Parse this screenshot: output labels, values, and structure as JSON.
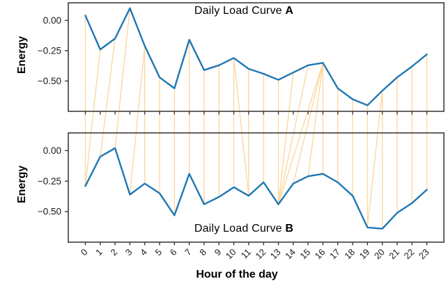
{
  "figure": {
    "xlabel": "Hour of the day",
    "ylabel": "Energy",
    "background": "#ffffff",
    "colors": {
      "curve": "#1f77b4",
      "alignment_line": "#fdd089",
      "axis": "#3c3c3c",
      "tick_text": "#1a1a1a"
    }
  },
  "axes": {
    "xlim": [
      -1.15,
      24.15
    ],
    "ylim": [
      -0.75,
      0.145
    ],
    "x_tick_labels": [
      "0",
      "1",
      "2",
      "3",
      "4",
      "5",
      "6",
      "7",
      "8",
      "9",
      "10",
      "11",
      "12",
      "13",
      "14",
      "15",
      "16",
      "17",
      "18",
      "19",
      "20",
      "21",
      "22",
      "23"
    ],
    "yticks": [
      {
        "value": 0.0,
        "label": "0.00"
      },
      {
        "value": -0.25,
        "label": "−0.25"
      },
      {
        "value": -0.5,
        "label": "−0.50"
      }
    ]
  },
  "chart_data": [
    {
      "type": "line",
      "title_text": "Daily Load Curve ",
      "title_bold": "A",
      "ylabel": "Energy",
      "x": [
        0,
        1,
        2,
        3,
        4,
        5,
        6,
        7,
        8,
        9,
        10,
        11,
        12,
        13,
        14,
        15,
        16,
        17,
        18,
        19,
        20,
        21,
        22,
        23
      ],
      "values": [
        0.04,
        -0.24,
        -0.15,
        0.1,
        -0.21,
        -0.47,
        -0.56,
        -0.16,
        -0.41,
        -0.37,
        -0.31,
        -0.4,
        -0.44,
        -0.49,
        -0.43,
        -0.37,
        -0.35,
        -0.56,
        -0.65,
        -0.7,
        -0.58,
        -0.47,
        -0.38,
        -0.28
      ],
      "ylim": [
        -0.75,
        0.145
      ],
      "grid": false,
      "legend": "none"
    },
    {
      "type": "line",
      "title_text": "Daily Load Curve ",
      "title_bold": "B",
      "ylabel": "Energy",
      "xlabel": "Hour of the day",
      "x": [
        0,
        1,
        2,
        3,
        4,
        5,
        6,
        7,
        8,
        9,
        10,
        11,
        12,
        13,
        14,
        15,
        16,
        17,
        18,
        19,
        20,
        21,
        22,
        23
      ],
      "values": [
        -0.29,
        -0.05,
        0.02,
        -0.36,
        -0.27,
        -0.35,
        -0.53,
        -0.19,
        -0.44,
        -0.38,
        -0.3,
        -0.37,
        -0.26,
        -0.44,
        -0.27,
        -0.21,
        -0.19,
        -0.26,
        -0.37,
        -0.63,
        -0.64,
        -0.51,
        -0.43,
        -0.32
      ],
      "ylim": [
        -0.75,
        0.145
      ],
      "grid": false,
      "legend": "none"
    }
  ],
  "alignment": {
    "pairs": [
      [
        0,
        0
      ],
      [
        1,
        0
      ],
      [
        2,
        1
      ],
      [
        3,
        2
      ],
      [
        4,
        3
      ],
      [
        4,
        4
      ],
      [
        5,
        5
      ],
      [
        6,
        6
      ],
      [
        7,
        7
      ],
      [
        8,
        8
      ],
      [
        9,
        9
      ],
      [
        10,
        10
      ],
      [
        10,
        11
      ],
      [
        11,
        11
      ],
      [
        12,
        12
      ],
      [
        13,
        13
      ],
      [
        14,
        13
      ],
      [
        15,
        13
      ],
      [
        16,
        13
      ],
      [
        16,
        14
      ],
      [
        16,
        15
      ],
      [
        16,
        16
      ],
      [
        17,
        17
      ],
      [
        18,
        18
      ],
      [
        19,
        19
      ],
      [
        20,
        19
      ],
      [
        20,
        20
      ],
      [
        21,
        21
      ],
      [
        22,
        22
      ],
      [
        23,
        23
      ]
    ]
  }
}
